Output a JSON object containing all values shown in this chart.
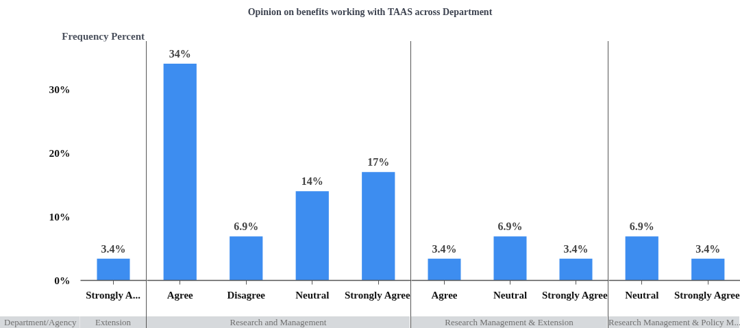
{
  "chart_data": [
    {
      "type": "bar",
      "ylabel": "Frequency Percent",
      "xlabel": "Extension",
      "annotations": [
        "Department/Agency"
      ],
      "categories": [
        "Strongly A..."
      ],
      "values": [
        3.4
      ],
      "value_labels": [
        "3.4%"
      ],
      "color": "#3d8df0",
      "ylim": [
        0,
        37.5
      ],
      "yticks": [
        {
          "value": 0,
          "label": "0%"
        },
        {
          "value": 10,
          "label": "10%"
        },
        {
          "value": 20,
          "label": "20%"
        },
        {
          "value": 30,
          "label": "30%"
        }
      ]
    },
    {
      "type": "bar",
      "title": "Opinion on benefits working with TAAS across Department",
      "xlabel": "Research and Management",
      "categories": [
        "Agree",
        "Disagree",
        "Neutral",
        "Strongly Agree"
      ],
      "values": [
        34,
        6.9,
        14,
        17
      ],
      "value_labels": [
        "34%",
        "6.9%",
        "14%",
        "17%"
      ],
      "color": "#3d8df0",
      "ylim": [
        0,
        37.5
      ],
      "tick_labels": "x"
    },
    {
      "type": "bar",
      "xlabel": "Research Management & Extension",
      "categories": [
        "Agree",
        "Neutral",
        "Strongly Agree"
      ],
      "values": [
        3.4,
        6.9,
        3.4
      ],
      "value_labels": [
        "3.4%",
        "6.9%",
        "3.4%"
      ],
      "color": "#3d8df0",
      "ylim": [
        0,
        37.5
      ],
      "tick_labels": "x"
    },
    {
      "type": "bar",
      "xlabel": "Research Management & Policy M...",
      "categories": [
        "Neutral",
        "Strongly Agree"
      ],
      "values": [
        6.9,
        3.4
      ],
      "value_labels": [
        "6.9%",
        "3.4%"
      ],
      "color": "#3d8df0",
      "ylim": [
        0,
        37.5
      ],
      "tick_labels": "x"
    }
  ]
}
